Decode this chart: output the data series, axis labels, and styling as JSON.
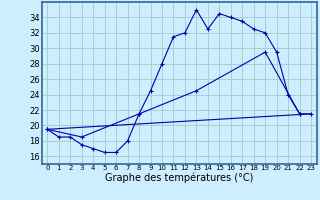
{
  "xlabel": "Graphe des températures (°C)",
  "bg_color": "#cceeff",
  "grid_color": "#aacccc",
  "line_color": "#0000aa",
  "border_color": "#336699",
  "xtick_labels": [
    "0",
    "1",
    "2",
    "3",
    "4",
    "5",
    "6",
    "7",
    "8",
    "9",
    "10",
    "11",
    "12",
    "13",
    "14",
    "15",
    "16",
    "17",
    "18",
    "19",
    "20",
    "21",
    "22",
    "23"
  ],
  "ytick_values": [
    16,
    18,
    20,
    22,
    24,
    26,
    28,
    30,
    32,
    34
  ],
  "ylim": [
    15.0,
    36.0
  ],
  "xlim": [
    -0.5,
    23.5
  ],
  "line1_x": [
    0,
    1,
    2,
    3,
    4,
    5,
    6,
    7,
    8,
    9,
    10,
    11,
    12,
    13,
    14,
    15,
    16,
    17,
    18,
    19,
    20,
    21,
    22,
    23
  ],
  "line1_y": [
    19.5,
    18.5,
    18.5,
    17.5,
    17.0,
    16.5,
    16.5,
    18.0,
    21.5,
    24.5,
    28.0,
    31.5,
    32.0,
    35.0,
    32.5,
    34.5,
    34.0,
    33.5,
    32.5,
    32.0,
    29.5,
    24.0,
    21.5,
    21.5
  ],
  "line2_x": [
    0,
    3,
    8,
    13,
    19,
    22
  ],
  "line2_y": [
    19.5,
    18.5,
    21.5,
    24.5,
    29.5,
    21.5
  ],
  "line3_x": [
    0,
    23
  ],
  "line3_y": [
    19.5,
    21.5
  ],
  "xlabel_fontsize": 7,
  "ytick_fontsize": 6,
  "xtick_fontsize": 5
}
